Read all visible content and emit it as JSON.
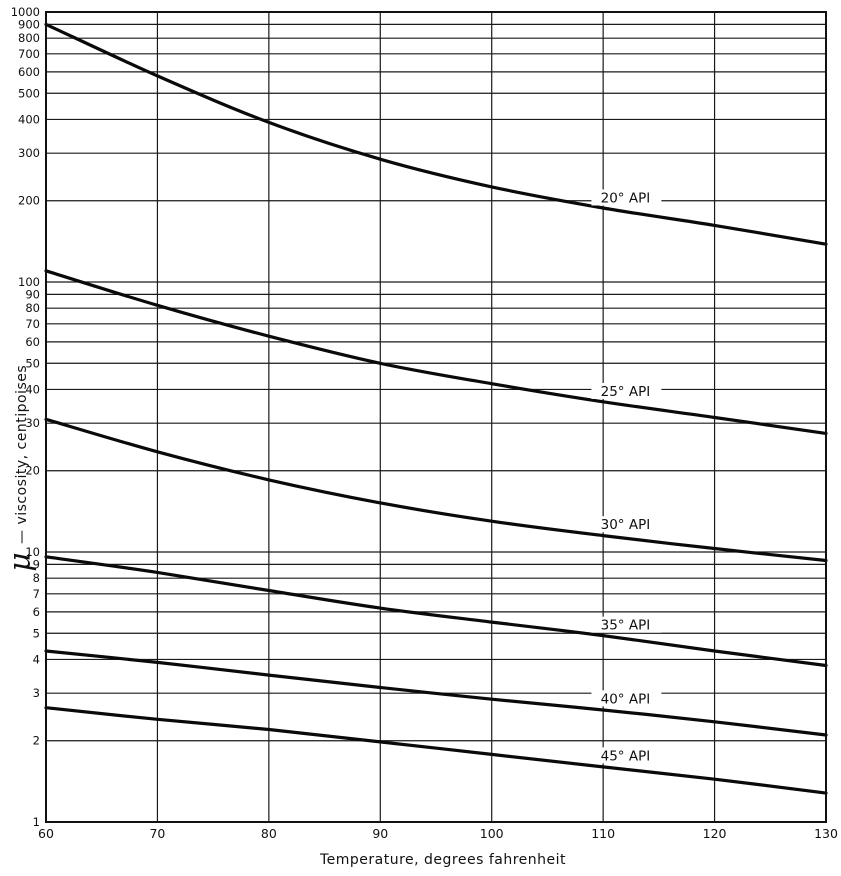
{
  "chart_data": {
    "type": "line",
    "title": "",
    "xlabel": "Temperature, degrees fahrenheit",
    "ylabel_symbol": "μ",
    "ylabel": "— viscosity, centipoises",
    "xlim": [
      60,
      130
    ],
    "ylim": [
      1,
      1000
    ],
    "yscale": "log",
    "grid": true,
    "x_ticks": [
      "60",
      "70",
      "80",
      "90",
      "100",
      "110",
      "120",
      "130"
    ],
    "y_ticks": [
      "1",
      "2",
      "3",
      "4",
      "5",
      "6",
      "7",
      "8",
      "9",
      "10",
      "20",
      "30",
      "40",
      "50",
      "60",
      "70",
      "80",
      "90",
      "100",
      "200",
      "300",
      "400",
      "500",
      "600",
      "700",
      "800",
      "900",
      "1000"
    ],
    "series": [
      {
        "name": "20° API",
        "x": [
          60,
          70,
          80,
          90,
          100,
          110,
          120,
          130
        ],
        "values": [
          900,
          580,
          390,
          285,
          225,
          188,
          162,
          138
        ]
      },
      {
        "name": "25° API",
        "x": [
          60,
          70,
          80,
          90,
          100,
          110,
          120,
          130
        ],
        "values": [
          110,
          82,
          63,
          50,
          42,
          36,
          31.5,
          27.5
        ]
      },
      {
        "name": "30° API",
        "x": [
          60,
          70,
          80,
          90,
          100,
          110,
          120,
          130
        ],
        "values": [
          31,
          23.5,
          18.5,
          15.2,
          13,
          11.5,
          10.3,
          9.3
        ]
      },
      {
        "name": "35° API",
        "x": [
          60,
          70,
          80,
          90,
          100,
          110,
          120,
          130
        ],
        "values": [
          9.6,
          8.4,
          7.2,
          6.2,
          5.5,
          4.9,
          4.3,
          3.8
        ]
      },
      {
        "name": "40° API",
        "x": [
          60,
          70,
          80,
          90,
          100,
          110,
          120,
          130
        ],
        "values": [
          4.3,
          3.9,
          3.5,
          3.15,
          2.85,
          2.6,
          2.35,
          2.1
        ]
      },
      {
        "name": "45° API",
        "x": [
          60,
          70,
          80,
          90,
          100,
          110,
          120,
          130
        ],
        "values": [
          2.65,
          2.4,
          2.2,
          1.98,
          1.78,
          1.6,
          1.44,
          1.28
        ]
      }
    ]
  }
}
